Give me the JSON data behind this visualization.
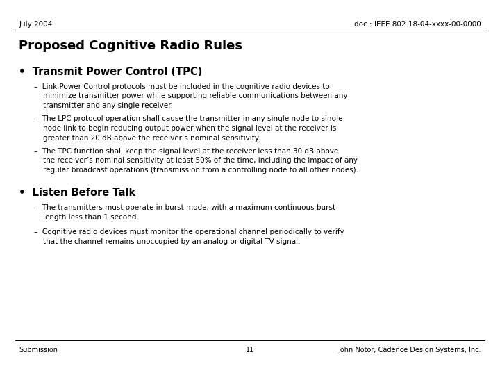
{
  "header_left": "July 2004",
  "header_right": "doc.: IEEE 802.18-04-xxxx-00-0000",
  "title": "Proposed Cognitive Radio Rules",
  "bullet1_header": "•  Transmit Power Control (TPC)",
  "bullet1_sub1": "–  Link Power Control protocols must be included in the cognitive radio devices to\n    minimize transmitter power while supporting reliable communications between any\n    transmitter and any single receiver.",
  "bullet1_sub2": "–  The LPC protocol operation shall cause the transmitter in any single node to single\n    node link to begin reducing output power when the signal level at the receiver is\n    greater than 20 dB above the receiver’s nominal sensitivity.",
  "bullet1_sub3": "–  The TPC function shall keep the signal level at the receiver less than 30 dB above\n    the receiver’s nominal sensitivity at least 50% of the time, including the impact of any\n    regular broadcast operations (transmission from a controlling node to all other nodes).",
  "bullet2_header": "•  Listen Before Talk",
  "bullet2_sub1": "–  The transmitters must operate in burst mode, with a maximum continuous burst\n    length less than 1 second.",
  "bullet2_sub2": "–  Cognitive radio devices must monitor the operational channel periodically to verify\n    that the channel remains unoccupied by an analog or digital TV signal.",
  "footer_left": "Submission",
  "footer_center": "11",
  "footer_right": "John Notor, Cadence Design Systems, Inc.",
  "bg_color": "#ffffff",
  "text_color": "#000000",
  "header_fontsize": 7.5,
  "title_fontsize": 13,
  "bullet_header_fontsize": 10.5,
  "body_fontsize": 7.5,
  "footer_fontsize": 7
}
